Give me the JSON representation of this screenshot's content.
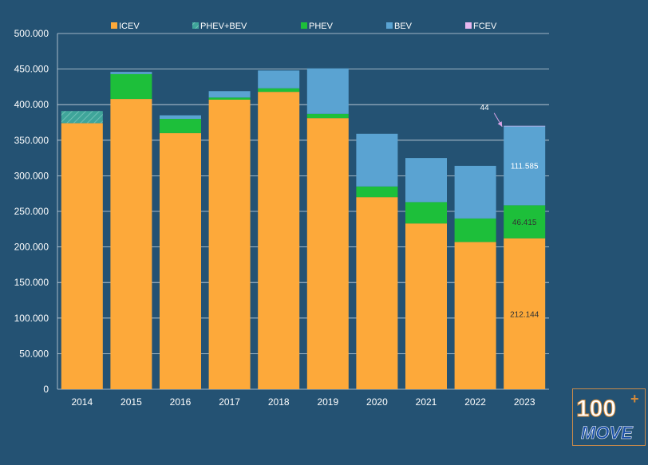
{
  "chart_data": {
    "type": "bar",
    "stacked": true,
    "categories": [
      "2014",
      "2015",
      "2016",
      "2017",
      "2018",
      "2019",
      "2020",
      "2021",
      "2022",
      "2023"
    ],
    "series": [
      {
        "name": "ICEV",
        "color": "#fda93a",
        "values": [
          374000,
          408000,
          360000,
          407000,
          418000,
          381000,
          270000,
          233000,
          207000,
          212144
        ]
      },
      {
        "name": "PHEV+BEV",
        "color": "#3fa59a",
        "pattern": "hatched",
        "values": [
          17000,
          0,
          0,
          0,
          0,
          0,
          0,
          0,
          0,
          0
        ]
      },
      {
        "name": "PHEV",
        "color": "#1dbf3a",
        "values": [
          0,
          35000,
          20000,
          3000,
          5000,
          6000,
          15000,
          30000,
          33000,
          46415
        ]
      },
      {
        "name": "BEV",
        "color": "#5aa3d2",
        "values": [
          0,
          3000,
          5000,
          9000,
          25000,
          64000,
          74000,
          62000,
          74000,
          111585
        ]
      },
      {
        "name": "FCEV",
        "color": "#e8b7f0",
        "values": [
          0,
          0,
          0,
          0,
          0,
          0,
          0,
          0,
          0,
          44
        ]
      }
    ],
    "ylim": [
      0,
      500000
    ],
    "yticks": [
      0,
      50000,
      100000,
      150000,
      200000,
      250000,
      300000,
      350000,
      400000,
      450000,
      500000
    ],
    "ytick_labels": [
      "0",
      "50.000",
      "100.000",
      "150.000",
      "200.000",
      "250.000",
      "300.000",
      "350.000",
      "400.000",
      "450.000",
      "500.000"
    ],
    "legend_position": "top",
    "grid": true,
    "annotations": [
      {
        "category": "2023",
        "series": "ICEV",
        "text": "212.144"
      },
      {
        "category": "2023",
        "series": "PHEV",
        "text": "46.415"
      },
      {
        "category": "2023",
        "series": "BEV",
        "text": "111.585"
      },
      {
        "category": "2023",
        "series": "FCEV",
        "text": "44",
        "callout": true
      }
    ]
  },
  "logo": {
    "text": "100",
    "sub": "MOVE"
  }
}
